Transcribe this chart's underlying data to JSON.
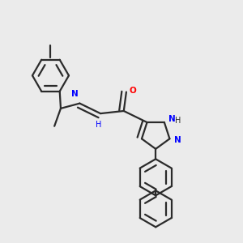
{
  "background_color": "#ebebeb",
  "bond_color": "#2b2b2b",
  "atom_colors": {
    "N": "#0000ff",
    "O": "#ff0000",
    "H": "#2b2b2b",
    "C": "#2b2b2b"
  },
  "hex_r": 0.072,
  "lw": 1.6
}
